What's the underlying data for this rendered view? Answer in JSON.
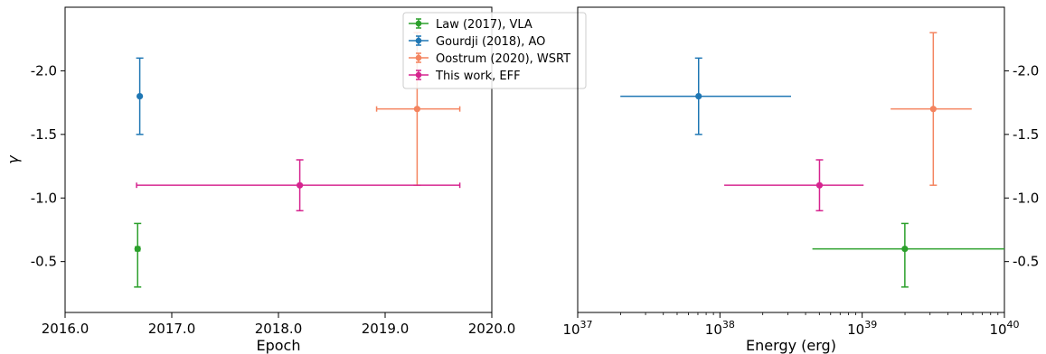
{
  "chart_data": [
    {
      "type": "scatter",
      "panel": "left",
      "xlabel": "Epoch",
      "ylabel": "γ",
      "xlim": [
        2016.0,
        2020.0
      ],
      "ylim": [
        -0.1,
        -2.5
      ],
      "y_inverted_display": true,
      "x_ticks": [
        2016.0,
        2017.0,
        2018.0,
        2019.0,
        2020.0
      ],
      "x_tick_labels": [
        "2016.0",
        "2017.0",
        "2018.0",
        "2019.0",
        "2020.0"
      ],
      "y_ticks": [
        -0.5,
        -1.0,
        -1.5,
        -2.0
      ],
      "y_tick_labels": [
        "-0.5",
        "-1.0",
        "-1.5",
        "-2.0"
      ],
      "grid": false,
      "legend_position": "upper-center",
      "series": [
        {
          "name": "Law (2017), VLA",
          "color": "#2ca02c",
          "x": 2016.68,
          "y": -0.6,
          "xerr": [
            0.02,
            0.02
          ],
          "yerr": [
            0.3,
            0.2
          ]
        },
        {
          "name": "Gourdji (2018), AO",
          "color": "#1f77b4",
          "x": 2016.7,
          "y": -1.8,
          "xerr": [
            0,
            0
          ],
          "yerr": [
            0.3,
            0.3
          ]
        },
        {
          "name": "Oostrum (2020), WSRT",
          "color": "#f4845f",
          "x": 2019.3,
          "y": -1.7,
          "xerr": [
            0.38,
            0.4
          ],
          "yerr": [
            0.6,
            0.6
          ]
        },
        {
          "name": "This work, EFF",
          "color": "#d6248f",
          "x": 2018.2,
          "y": -1.1,
          "xerr": [
            1.53,
            1.5
          ],
          "yerr": [
            0.2,
            0.2
          ]
        }
      ]
    },
    {
      "type": "scatter",
      "panel": "right",
      "xlabel": "Energy (erg)",
      "xscale": "log",
      "xlim": [
        1e+37,
        1e+40
      ],
      "ylim": [
        -0.1,
        -2.5
      ],
      "y_inverted_display": true,
      "x_tick_labels": [
        {
          "base": "10",
          "exp": "37"
        },
        {
          "base": "10",
          "exp": "38"
        },
        {
          "base": "10",
          "exp": "39"
        },
        {
          "base": "10",
          "exp": "40"
        }
      ],
      "y_ticks": [
        -0.5,
        -1.0,
        -1.5,
        -2.0
      ],
      "y_tick_labels": [
        "-0.5",
        "-1.0",
        "-1.5",
        "-2.0"
      ],
      "grid": false,
      "series": [
        {
          "name": "Law (2017), VLA",
          "color": "#2ca02c",
          "x_log10": 39.3,
          "y": -0.6,
          "x_log10_range": [
            38.65,
            40.0
          ],
          "yerr": [
            0.3,
            0.2
          ]
        },
        {
          "name": "Gourdji (2018), AO",
          "color": "#1f77b4",
          "x_log10": 37.85,
          "y": -1.8,
          "x_log10_range": [
            37.3,
            38.5
          ],
          "yerr": [
            0.3,
            0.3
          ]
        },
        {
          "name": "Oostrum (2020), WSRT",
          "color": "#f4845f",
          "x_log10": 39.5,
          "y": -1.7,
          "x_log10_range": [
            39.2,
            39.77
          ],
          "yerr": [
            0.6,
            0.6
          ]
        },
        {
          "name": "This work, EFF",
          "color": "#d6248f",
          "x_log10": 38.7,
          "y": -1.1,
          "x_log10_range": [
            38.03,
            39.01
          ],
          "yerr": [
            0.2,
            0.2
          ]
        }
      ]
    }
  ]
}
